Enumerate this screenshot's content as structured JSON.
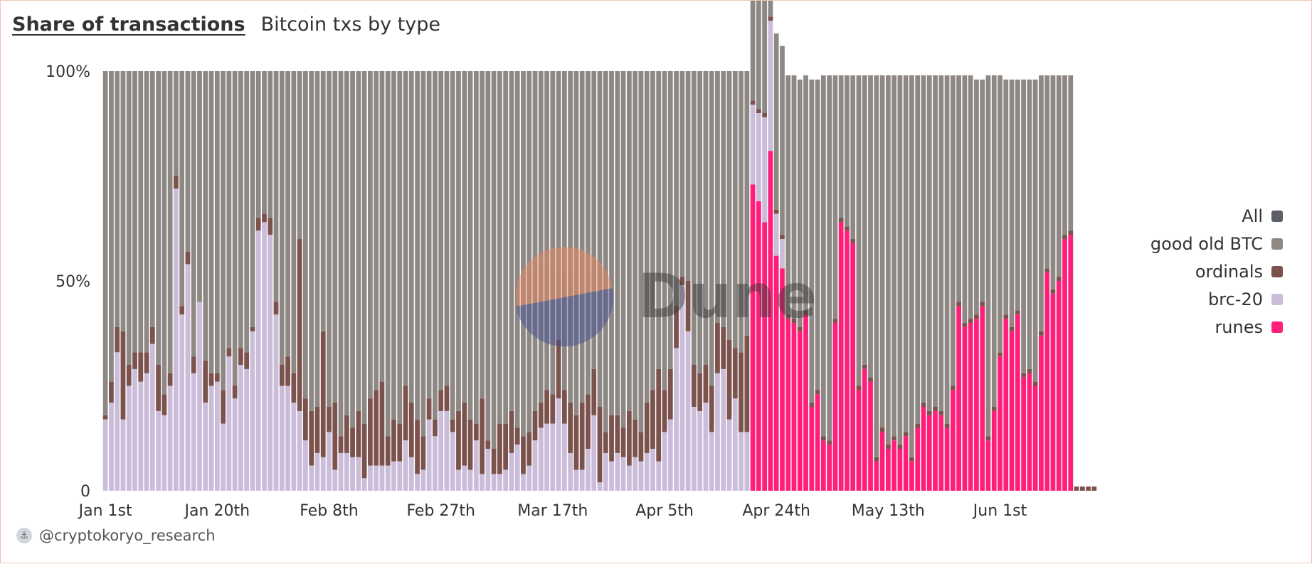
{
  "header": {
    "title": "Share of transactions",
    "subtitle": "Bitcoin txs by type"
  },
  "legend": [
    {
      "label": "All",
      "color": "#5b5f66"
    },
    {
      "label": "good old BTC",
      "color": "#8e8885"
    },
    {
      "label": "ordinals",
      "color": "#7b524c"
    },
    {
      "label": "brc-20",
      "color": "#cbbcd9"
    },
    {
      "label": "runes",
      "color": "#ff1f7a"
    }
  ],
  "footer": {
    "author": "@cryptokoryo_research"
  },
  "watermark": "Dune",
  "chart_data": {
    "type": "bar",
    "stacked": true,
    "normalized": true,
    "x_ticks": [
      "Jan 1st",
      "Jan 20th",
      "Feb 8th",
      "Feb 27th",
      "Mar 17th",
      "Apr 5th",
      "Apr 24th",
      "May 13th",
      "Jun 1st"
    ],
    "x_tick_day_index": [
      0,
      19,
      38,
      57,
      76,
      95,
      114,
      133,
      152
    ],
    "y_ticks": [
      "0",
      "50%",
      "100%"
    ],
    "ylim": [
      0,
      100
    ],
    "days": 169,
    "legend_position": "right",
    "series": [
      {
        "name": "runes",
        "color": "#ff1f7a",
        "values": [
          0,
          0,
          0,
          0,
          0,
          0,
          0,
          0,
          0,
          0,
          0,
          0,
          0,
          0,
          0,
          0,
          0,
          0,
          0,
          0,
          0,
          0,
          0,
          0,
          0,
          0,
          0,
          0,
          0,
          0,
          0,
          0,
          0,
          0,
          0,
          0,
          0,
          0,
          0,
          0,
          0,
          0,
          0,
          0,
          0,
          0,
          0,
          0,
          0,
          0,
          0,
          0,
          0,
          0,
          0,
          0,
          0,
          0,
          0,
          0,
          0,
          0,
          0,
          0,
          0,
          0,
          0,
          0,
          0,
          0,
          0,
          0,
          0,
          0,
          0,
          0,
          0,
          0,
          0,
          0,
          0,
          0,
          0,
          0,
          0,
          0,
          0,
          0,
          0,
          0,
          0,
          0,
          0,
          0,
          0,
          0,
          0,
          0,
          0,
          0,
          0,
          0,
          0,
          0,
          0,
          0,
          0,
          0,
          0,
          0,
          73,
          69,
          64,
          81,
          56,
          53,
          41,
          40,
          38,
          42,
          20,
          23,
          12,
          11,
          40,
          64,
          62,
          59,
          24,
          29,
          26,
          7,
          14,
          10,
          12,
          10,
          13,
          7,
          15,
          20,
          18,
          19,
          18,
          15,
          24,
          44,
          39,
          40,
          41,
          44,
          12,
          19,
          32,
          41,
          38,
          42,
          27,
          28,
          25,
          37,
          52,
          47,
          50,
          60,
          61
        ]
      },
      {
        "name": "brc-20",
        "color": "#cbbcd9",
        "values": [
          17,
          21,
          33,
          17,
          25,
          29,
          26,
          28,
          35,
          19,
          18,
          25,
          72,
          42,
          54,
          28,
          45,
          21,
          25,
          26,
          16,
          32,
          22,
          30,
          29,
          38,
          62,
          64,
          61,
          42,
          25,
          25,
          21,
          19,
          12,
          6,
          9,
          8,
          14,
          5,
          9,
          9,
          8,
          8,
          3,
          6,
          6,
          6,
          6,
          7,
          7,
          12,
          8,
          4,
          5,
          17,
          13,
          19,
          19,
          14,
          5,
          6,
          5,
          12,
          4,
          10,
          4,
          4,
          5,
          9,
          11,
          4,
          6,
          12,
          15,
          16,
          16,
          22,
          16,
          9,
          5,
          5,
          10,
          18,
          2,
          9,
          7,
          9,
          8,
          6,
          8,
          7,
          9,
          10,
          7,
          14,
          17,
          34,
          49,
          38,
          20,
          19,
          21,
          14,
          28,
          29,
          17,
          22,
          14,
          14,
          19,
          21,
          25,
          31,
          10,
          7,
          0,
          0,
          0,
          0,
          0,
          0,
          0,
          0,
          0,
          0,
          0,
          0,
          0,
          0,
          0,
          0,
          0,
          0,
          0,
          0,
          0,
          0,
          0,
          0,
          0,
          0,
          0,
          0,
          0,
          0,
          0,
          0,
          0,
          0,
          0,
          0,
          0,
          0,
          0,
          0,
          0,
          0,
          0,
          0,
          0,
          0,
          0,
          0,
          0,
          0,
          0,
          0,
          0,
          0
        ]
      },
      {
        "name": "ordinals",
        "color": "#7b524c",
        "values": [
          1,
          5,
          6,
          21,
          5,
          4,
          7,
          5,
          4,
          11,
          5,
          3,
          3,
          2,
          3,
          4,
          0,
          10,
          3,
          2,
          8,
          2,
          3,
          4,
          4,
          1,
          3,
          2,
          4,
          3,
          5,
          7,
          7,
          41,
          10,
          13,
          11,
          30,
          6,
          16,
          4,
          9,
          7,
          11,
          13,
          16,
          18,
          20,
          7,
          10,
          9,
          13,
          13,
          13,
          8,
          5,
          4,
          5,
          6,
          3,
          14,
          15,
          12,
          4,
          18,
          2,
          6,
          12,
          11,
          10,
          4,
          9,
          8,
          7,
          6,
          8,
          7,
          14,
          8,
          12,
          13,
          16,
          13,
          11,
          18,
          5,
          11,
          9,
          7,
          13,
          9,
          7,
          12,
          14,
          22,
          10,
          12,
          10,
          2,
          12,
          10,
          9,
          9,
          11,
          12,
          10,
          19,
          12,
          19,
          23,
          1,
          1,
          1,
          1,
          1,
          1,
          1,
          1,
          1,
          1,
          1,
          1,
          1,
          1,
          1,
          1,
          1,
          1,
          1,
          1,
          1,
          1,
          1,
          1,
          1,
          1,
          1,
          1,
          1,
          1,
          1,
          1,
          1,
          1,
          1,
          1,
          1,
          1,
          1,
          1,
          1,
          1,
          1,
          1,
          1,
          1,
          1,
          1,
          1,
          1,
          1,
          1,
          1,
          1,
          1,
          1,
          1,
          1,
          1
        ]
      },
      {
        "name": "good old BTC",
        "color": "#8e8885",
        "values": [
          82,
          74,
          61,
          62,
          70,
          67,
          67,
          67,
          61,
          70,
          77,
          72,
          25,
          56,
          43,
          68,
          55,
          69,
          72,
          72,
          76,
          66,
          75,
          66,
          67,
          61,
          35,
          34,
          35,
          55,
          70,
          68,
          72,
          40,
          78,
          81,
          80,
          62,
          80,
          79,
          87,
          82,
          85,
          81,
          84,
          78,
          76,
          74,
          87,
          83,
          84,
          75,
          79,
          83,
          87,
          78,
          83,
          76,
          75,
          83,
          81,
          79,
          83,
          84,
          78,
          88,
          90,
          84,
          84,
          81,
          85,
          87,
          86,
          81,
          79,
          76,
          77,
          64,
          76,
          79,
          82,
          79,
          77,
          71,
          80,
          86,
          82,
          82,
          85,
          81,
          83,
          86,
          79,
          76,
          71,
          76,
          71,
          56,
          49,
          50,
          70,
          72,
          70,
          75,
          60,
          61,
          64,
          66,
          67,
          63,
          25,
          29,
          34,
          17,
          42,
          45,
          57,
          58,
          59,
          56,
          77,
          74,
          86,
          87,
          58,
          34,
          36,
          39,
          74,
          69,
          72,
          91,
          84,
          88,
          86,
          88,
          85,
          91,
          83,
          78,
          80,
          79,
          80,
          83,
          74,
          54,
          59,
          58,
          56,
          53,
          86,
          79,
          66,
          56,
          59,
          55,
          70,
          69,
          72,
          61,
          46,
          51,
          48,
          38,
          37
        ]
      }
    ]
  }
}
